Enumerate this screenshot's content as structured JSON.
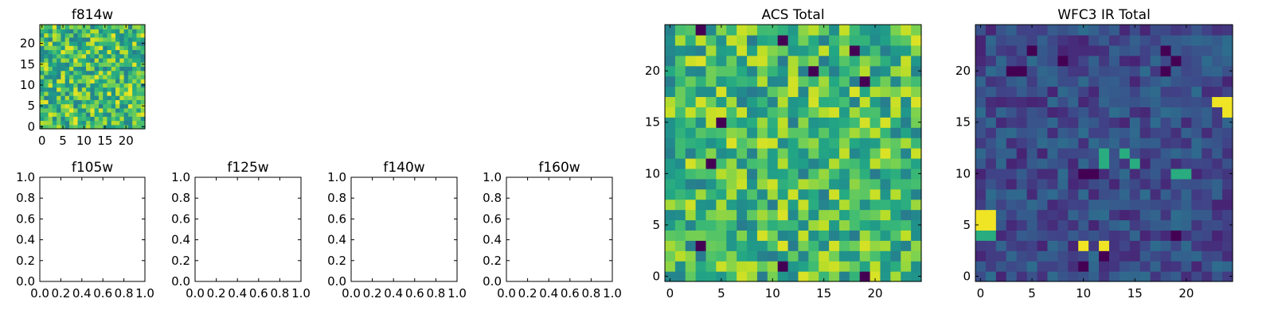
{
  "chart_data": [
    {
      "type": "heatmap",
      "title": "f814w",
      "nx": 25,
      "ny": 25,
      "xlim": [
        -0.5,
        24.5
      ],
      "ylim": [
        -0.5,
        24.5
      ],
      "xticks": [
        0,
        5,
        10,
        15,
        20
      ],
      "yticks": [
        0,
        5,
        10,
        15,
        20
      ],
      "colormap": "viridis",
      "value_range": [
        0,
        1
      ],
      "random_seed": 11,
      "distribution": "uniform",
      "mean": 0.7,
      "spread": 0.28
    },
    {
      "type": "empty",
      "title": "f105w",
      "xlim": [
        0.0,
        1.0
      ],
      "ylim": [
        0.0,
        1.0
      ],
      "xticks": [
        "0.0",
        "0.2",
        "0.4",
        "0.6",
        "0.8",
        "1.0"
      ],
      "yticks": [
        "0.0",
        "0.2",
        "0.4",
        "0.6",
        "0.8",
        "1.0"
      ]
    },
    {
      "type": "empty",
      "title": "f125w",
      "xlim": [
        0.0,
        1.0
      ],
      "ylim": [
        0.0,
        1.0
      ],
      "xticks": [
        "0.0",
        "0.2",
        "0.4",
        "0.6",
        "0.8",
        "1.0"
      ],
      "yticks": [
        "0.0",
        "0.2",
        "0.4",
        "0.6",
        "0.8",
        "1.0"
      ]
    },
    {
      "type": "empty",
      "title": "f140w",
      "xlim": [
        0.0,
        1.0
      ],
      "ylim": [
        0.0,
        1.0
      ],
      "xticks": [
        "0.0",
        "0.2",
        "0.4",
        "0.6",
        "0.8",
        "1.0"
      ],
      "yticks": [
        "0.0",
        "0.2",
        "0.4",
        "0.6",
        "0.8",
        "1.0"
      ]
    },
    {
      "type": "empty",
      "title": "f160w",
      "xlim": [
        0.0,
        1.0
      ],
      "ylim": [
        0.0,
        1.0
      ],
      "xticks": [
        "0.0",
        "0.2",
        "0.4",
        "0.6",
        "0.8",
        "1.0"
      ],
      "yticks": [
        "0.0",
        "0.2",
        "0.4",
        "0.6",
        "0.8",
        "1.0"
      ]
    },
    {
      "type": "heatmap",
      "title": "ACS Total",
      "nx": 25,
      "ny": 25,
      "xlim": [
        -0.5,
        24.5
      ],
      "ylim": [
        -0.5,
        24.5
      ],
      "xticks": [
        0,
        5,
        10,
        15,
        20
      ],
      "yticks": [
        0,
        5,
        10,
        15,
        20
      ],
      "colormap": "viridis",
      "value_range": [
        0,
        1
      ],
      "random_seed": 23,
      "distribution": "uniform",
      "mean": 0.68,
      "spread": 0.27,
      "hot_pixels": [],
      "cold_pixels": [
        [
          3,
          24
        ],
        [
          11,
          23
        ],
        [
          18,
          22
        ],
        [
          14,
          20
        ],
        [
          19,
          19
        ],
        [
          4,
          11
        ],
        [
          3,
          3
        ],
        [
          19,
          0
        ],
        [
          11,
          1
        ],
        [
          5,
          15
        ]
      ]
    },
    {
      "type": "heatmap",
      "title": "WFC3 IR Total",
      "nx": 25,
      "ny": 25,
      "xlim": [
        -0.5,
        24.5
      ],
      "ylim": [
        -0.5,
        24.5
      ],
      "xticks": [
        0,
        5,
        10,
        15,
        20
      ],
      "yticks": [
        0,
        5,
        10,
        15,
        20
      ],
      "colormap": "viridis",
      "value_range": [
        0,
        1
      ],
      "random_seed": 37,
      "distribution": "uniform",
      "mean": 0.23,
      "spread": 0.13,
      "hot_pixels": [
        [
          0,
          5
        ],
        [
          1,
          5
        ],
        [
          0,
          6
        ],
        [
          1,
          6
        ],
        [
          24,
          17
        ],
        [
          24,
          16
        ],
        [
          23,
          17
        ],
        [
          10,
          3
        ],
        [
          12,
          3
        ]
      ],
      "warm_pixels": [
        [
          19,
          10
        ],
        [
          20,
          10
        ],
        [
          12,
          12
        ],
        [
          14,
          12
        ],
        [
          0,
          4
        ],
        [
          1,
          4
        ],
        [
          12,
          11
        ],
        [
          15,
          11
        ]
      ],
      "cold_pixels": [
        [
          3,
          20
        ],
        [
          4,
          20
        ],
        [
          8,
          21
        ],
        [
          5,
          22
        ],
        [
          18,
          22
        ],
        [
          19,
          21
        ],
        [
          10,
          10
        ],
        [
          11,
          10
        ],
        [
          18,
          20
        ],
        [
          19,
          4
        ],
        [
          10,
          1
        ],
        [
          12,
          2
        ]
      ]
    }
  ]
}
